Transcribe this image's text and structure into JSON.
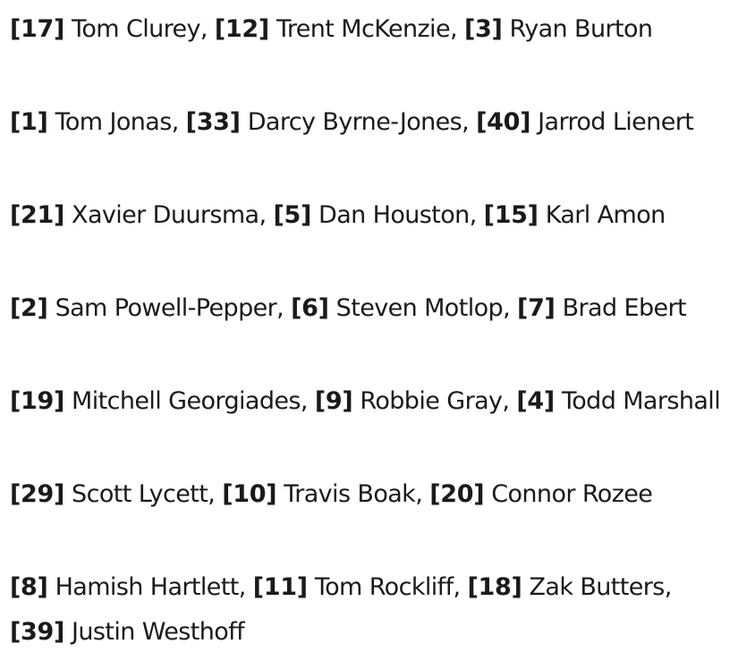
{
  "lines": [
    [
      {
        "num": "[17]",
        "name": "Tom Clurey"
      },
      {
        "num": "[12]",
        "name": "Trent McKenzie"
      },
      {
        "num": "[3]",
        "name": "Ryan Burton"
      }
    ],
    [
      {
        "num": "[1]",
        "name": "Tom Jonas"
      },
      {
        "num": "[33]",
        "name": "Darcy Byrne-Jones"
      },
      {
        "num": "[40]",
        "name": "Jarrod Lienert"
      }
    ],
    [
      {
        "num": "[21]",
        "name": "Xavier Duursma"
      },
      {
        "num": "[5]",
        "name": "Dan Houston"
      },
      {
        "num": "[15]",
        "name": "Karl Amon"
      }
    ],
    [
      {
        "num": "[2]",
        "name": "Sam Powell-Pepper"
      },
      {
        "num": "[6]",
        "name": "Steven Motlop"
      },
      {
        "num": "[7]",
        "name": "Brad Ebert"
      }
    ],
    [
      {
        "num": "[19]",
        "name": "Mitchell Georgiades"
      },
      {
        "num": "[9]",
        "name": "Robbie Gray"
      },
      {
        "num": "[4]",
        "name": "Todd Marshall"
      }
    ],
    [
      {
        "num": "[29]",
        "name": "Scott Lycett"
      },
      {
        "num": "[10]",
        "name": "Travis Boak"
      },
      {
        "num": "[20]",
        "name": "Connor Rozee"
      }
    ],
    [
      {
        "num": "[8]",
        "name": "Hamish Hartlett"
      },
      {
        "num": "[11]",
        "name": "Tom Rockliff"
      },
      {
        "num": "[18]",
        "name": "Zak Butters"
      },
      {
        "num": "[39]",
        "name": "Justin Westhoff"
      }
    ]
  ]
}
